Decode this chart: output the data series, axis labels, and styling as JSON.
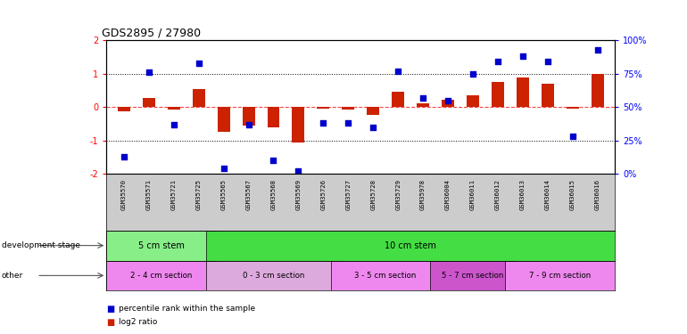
{
  "title": "GDS2895 / 27980",
  "samples": [
    "GSM35570",
    "GSM35571",
    "GSM35721",
    "GSM35725",
    "GSM35565",
    "GSM35567",
    "GSM35568",
    "GSM35569",
    "GSM35726",
    "GSM35727",
    "GSM35728",
    "GSM35729",
    "GSM35978",
    "GSM36004",
    "GSM36011",
    "GSM36012",
    "GSM36013",
    "GSM36014",
    "GSM36015",
    "GSM36016"
  ],
  "log2_ratio": [
    -0.12,
    0.28,
    -0.07,
    0.55,
    -0.75,
    -0.55,
    -0.6,
    -1.05,
    -0.05,
    -0.08,
    -0.22,
    0.45,
    0.12,
    0.22,
    0.35,
    0.75,
    0.88,
    0.7,
    -0.05,
    1.0
  ],
  "percentile": [
    13,
    76,
    37,
    83,
    4,
    37,
    10,
    2,
    38,
    38,
    35,
    77,
    57,
    55,
    75,
    84,
    88,
    84,
    28,
    93
  ],
  "bar_color": "#cc2200",
  "dot_color": "#0000cc",
  "background_color": "#ffffff",
  "ylim_left": [
    -2,
    2
  ],
  "ylim_right": [
    0,
    100
  ],
  "zero_color": "#ff4444",
  "hline_color": "#000000",
  "dev_stage_groups": [
    {
      "label": "5 cm stem",
      "start": 0,
      "end": 4,
      "color": "#88ee88"
    },
    {
      "label": "10 cm stem",
      "start": 4,
      "end": 20,
      "color": "#44dd44"
    }
  ],
  "other_groups": [
    {
      "label": "2 - 4 cm section",
      "start": 0,
      "end": 4,
      "color": "#ee88ee"
    },
    {
      "label": "0 - 3 cm section",
      "start": 4,
      "end": 9,
      "color": "#ddaadd"
    },
    {
      "label": "3 - 5 cm section",
      "start": 9,
      "end": 13,
      "color": "#ee88ee"
    },
    {
      "label": "5 - 7 cm section",
      "start": 13,
      "end": 16,
      "color": "#cc55cc"
    },
    {
      "label": "7 - 9 cm section",
      "start": 16,
      "end": 20,
      "color": "#ee88ee"
    }
  ],
  "bar_width": 0.5,
  "dot_size": 22,
  "label_bg": "#cccccc"
}
